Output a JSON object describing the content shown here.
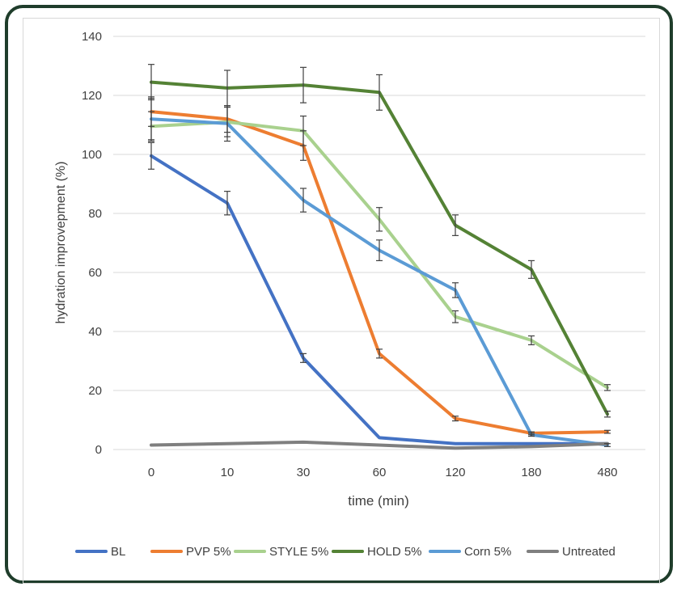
{
  "chart_data": {
    "type": "line",
    "xlabel": "time (min)",
    "ylabel": "hydration improvepment (%)",
    "categories": [
      "0",
      "10",
      "30",
      "60",
      "120",
      "180",
      "480"
    ],
    "ylim": [
      0,
      140
    ],
    "yticks": [
      "0",
      "20",
      "40",
      "60",
      "80",
      "100",
      "120",
      "140"
    ],
    "grid": "horizontal",
    "legend_position": "bottom",
    "series": [
      {
        "name": "BL",
        "color": "#4472C4",
        "values": [
          99.5,
          83.5,
          31,
          4,
          2,
          2,
          2
        ],
        "err": [
          4.5,
          4,
          1.5,
          0,
          0,
          0,
          0
        ]
      },
      {
        "name": "PVP 5%",
        "color": "#ED7D31",
        "values": [
          114.5,
          112,
          103,
          32.5,
          10.5,
          5.5,
          6
        ],
        "err": [
          5,
          4.5,
          5,
          1.5,
          0.8,
          0.5,
          0.5
        ]
      },
      {
        "name": "STYLE 5%",
        "color": "#A9D18E",
        "values": [
          109.5,
          111,
          108,
          78,
          45,
          37,
          21
        ],
        "err": [
          5,
          5,
          5,
          4,
          2,
          1.5,
          1
        ]
      },
      {
        "name": "HOLD 5%",
        "color": "#548235",
        "values": [
          124.5,
          122.5,
          123.5,
          121,
          76,
          61,
          12
        ],
        "err": [
          6,
          6,
          6,
          6,
          3.5,
          3,
          1
        ]
      },
      {
        "name": "Corn 5%",
        "color": "#5B9BD5",
        "values": [
          112,
          110.5,
          84.5,
          67.5,
          54,
          5,
          1.5
        ],
        "err": [
          7,
          6,
          4,
          3.5,
          2.5,
          0.5,
          0.5
        ]
      },
      {
        "name": "Untreated",
        "color": "#7F7F7F",
        "values": [
          1.5,
          2,
          2.5,
          1.5,
          0.5,
          1,
          2
        ],
        "err": [
          0,
          0,
          0,
          0,
          0,
          0,
          0
        ]
      }
    ]
  }
}
